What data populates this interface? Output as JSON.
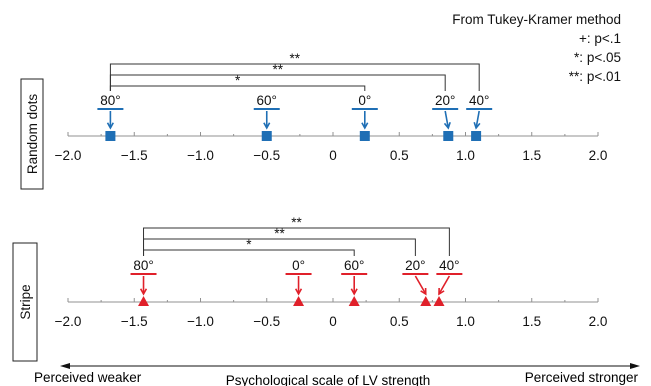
{
  "legend": {
    "title": "From Tukey-Kramer method",
    "entries": [
      {
        "symbol": "+:",
        "text": "p<.1"
      },
      {
        "symbol": "*:",
        "text": "p<.05"
      },
      {
        "symbol": "**:",
        "text": "p<.01"
      }
    ]
  },
  "colors": {
    "blue": "#1f6fb5",
    "red": "#e0202a",
    "axis": "#909090",
    "text": "#111111"
  },
  "chart_data": [
    {
      "type": "scatter",
      "panel_label": "Random dots",
      "marker": "square",
      "color": "#1f6fb5",
      "xlim": [
        -2.0,
        2.0
      ],
      "ticks": [
        -2.0,
        -1.5,
        -1.0,
        -0.5,
        0,
        0.5,
        1.0,
        1.5,
        2.0
      ],
      "tick_labels": [
        "−2.0",
        "−1.5",
        "−1.0",
        "−0.5",
        "0",
        "0.5",
        "1.0",
        "1.5",
        "2.0"
      ],
      "points": [
        {
          "label": "80°",
          "x": -1.68
        },
        {
          "label": "60°",
          "x": -0.5
        },
        {
          "label": "0°",
          "x": 0.24
        },
        {
          "label": "20°",
          "x": 0.87
        },
        {
          "label": "40°",
          "x": 1.08
        }
      ],
      "comparisons": [
        {
          "from": "80°",
          "to": "40°",
          "sig": "**"
        },
        {
          "from": "80°",
          "to": "20°",
          "sig": "**"
        },
        {
          "from": "80°",
          "to": "0°",
          "sig": "*"
        }
      ]
    },
    {
      "type": "scatter",
      "panel_label": "Stripe",
      "marker": "triangle",
      "color": "#e0202a",
      "xlim": [
        -2.0,
        2.0
      ],
      "ticks": [
        -2.0,
        -1.5,
        -1.0,
        -0.5,
        0,
        0.5,
        1.0,
        1.5,
        2.0
      ],
      "tick_labels": [
        "−2.0",
        "−1.5",
        "−1.0",
        "−0.5",
        "0",
        "0.5",
        "1.0",
        "1.5",
        "2.0"
      ],
      "points": [
        {
          "label": "80°",
          "x": -1.43
        },
        {
          "label": "0°",
          "x": -0.26
        },
        {
          "label": "60°",
          "x": 0.16
        },
        {
          "label": "20°",
          "x": 0.7
        },
        {
          "label": "40°",
          "x": 0.8
        }
      ],
      "comparisons": [
        {
          "from": "80°",
          "to": "40°",
          "sig": "**"
        },
        {
          "from": "80°",
          "to": "20°",
          "sig": "**"
        },
        {
          "from": "80°",
          "to": "60°",
          "sig": "*"
        }
      ]
    }
  ],
  "scale": {
    "left_label": "Perceived weaker",
    "center_label": "Psychological scale of LV strength",
    "right_label": "Perceived stronger"
  }
}
